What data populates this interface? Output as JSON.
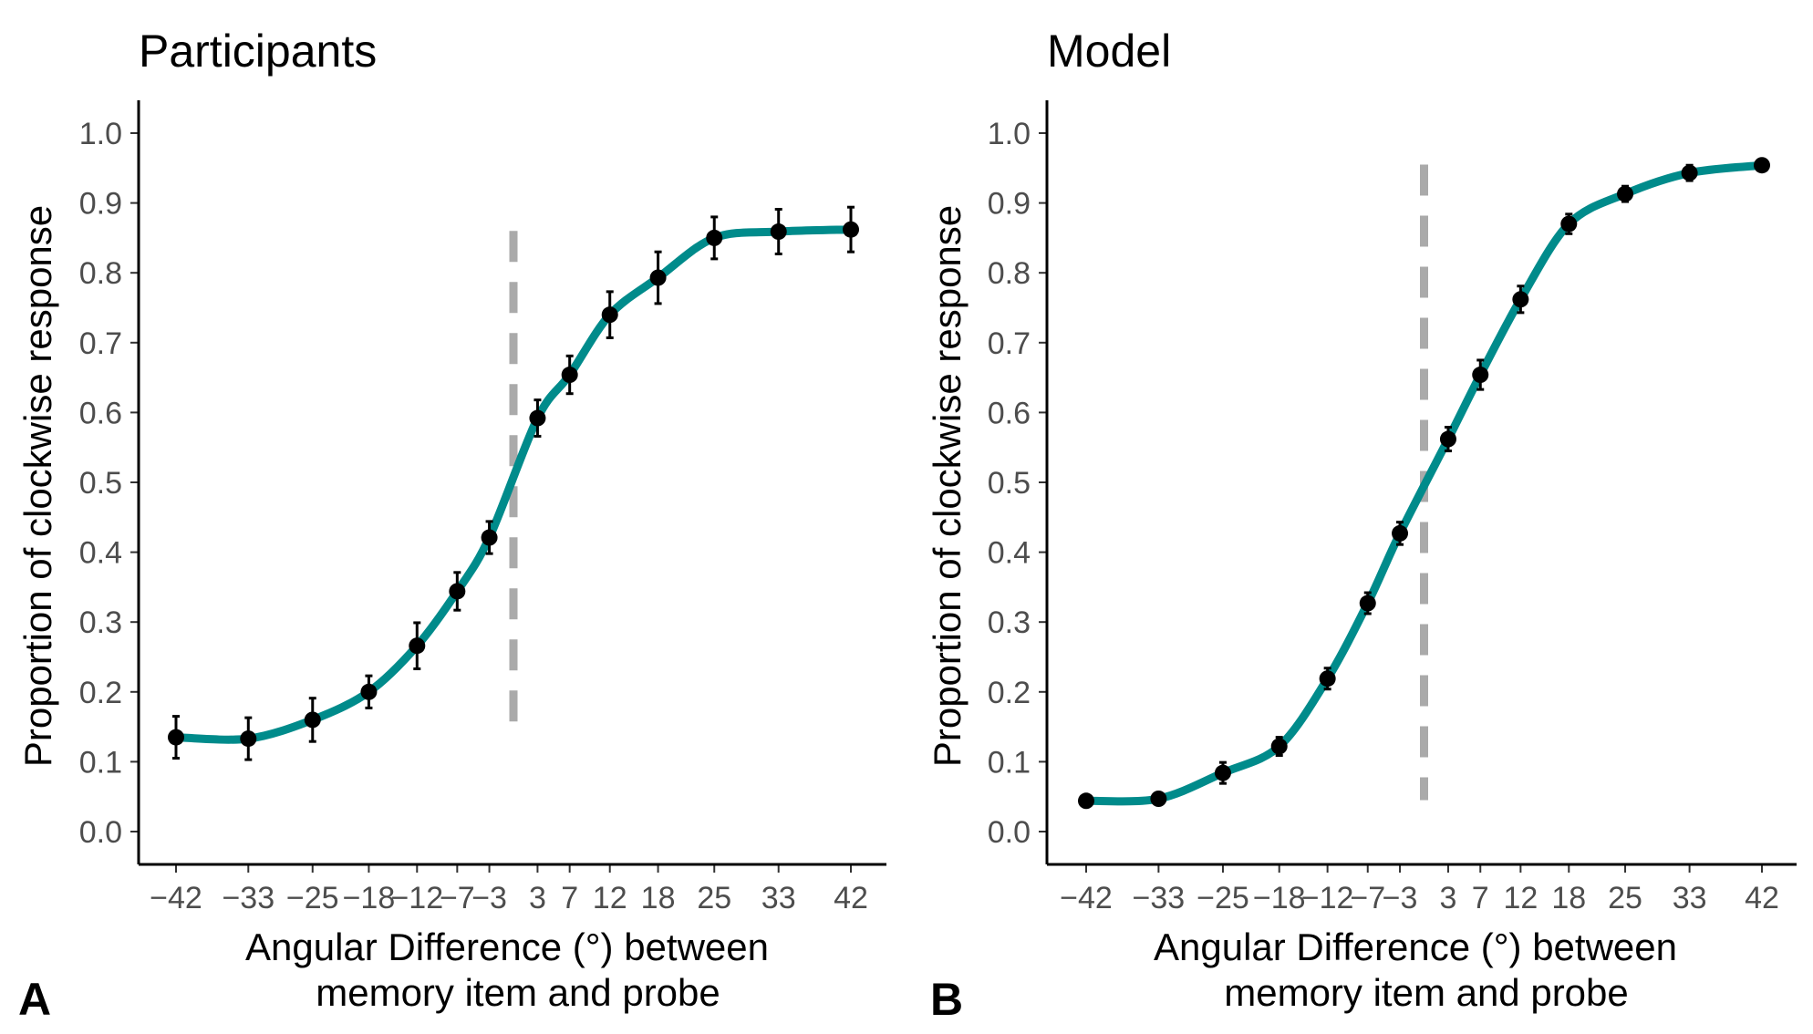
{
  "chart_data": [
    {
      "type": "line",
      "panel_letter": "A",
      "title": "Participants",
      "xlabel_lines": [
        "Angular Difference (°) between",
        "memory item and probe"
      ],
      "ylabel": "Proportion of clockwise response",
      "x": [
        -42,
        -33,
        -25,
        -18,
        -12,
        -7,
        -3,
        3,
        7,
        12,
        18,
        25,
        33,
        42
      ],
      "x_tick_labels": [
        "−42",
        "−33",
        "−25",
        "−18",
        "−12",
        "−7",
        "−3",
        "3",
        "7",
        "12",
        "18",
        "25",
        "33",
        "42"
      ],
      "y_ticks": [
        0.0,
        0.1,
        0.2,
        0.3,
        0.4,
        0.5,
        0.6,
        0.7,
        0.8,
        0.9,
        1.0
      ],
      "y_tick_labels": [
        "0.0",
        "0.1",
        "0.2",
        "0.3",
        "0.4",
        "0.5",
        "0.6",
        "0.7",
        "0.8",
        "0.9",
        "1.0"
      ],
      "ylim": [
        0.0,
        1.0
      ],
      "series": [
        {
          "line_color": "#008b8b",
          "point_color": "#000000",
          "means": [
            0.135,
            0.133,
            0.16,
            0.2,
            0.266,
            0.344,
            0.421,
            0.592,
            0.654,
            0.74,
            0.793,
            0.85,
            0.859,
            0.862
          ],
          "error": [
            0.03,
            0.03,
            0.031,
            0.023,
            0.033,
            0.027,
            0.023,
            0.026,
            0.027,
            0.033,
            0.037,
            0.03,
            0.032,
            0.032
          ]
        }
      ],
      "reference_line": {
        "x": 0,
        "y_range": [
          0.13,
          0.86
        ],
        "color": "#aaaaaa",
        "style": "dashed"
      },
      "grid": false
    },
    {
      "type": "line",
      "panel_letter": "B",
      "title": "Model",
      "xlabel_lines": [
        "Angular Difference (°) between",
        "memory item and probe"
      ],
      "ylabel": "Proportion of clockwise response",
      "x": [
        -42,
        -33,
        -25,
        -18,
        -12,
        -7,
        -3,
        3,
        7,
        12,
        18,
        25,
        33,
        42
      ],
      "x_tick_labels": [
        "−42",
        "−33",
        "−25",
        "−18",
        "−12",
        "−7",
        "−3",
        "3",
        "7",
        "12",
        "18",
        "25",
        "33",
        "42"
      ],
      "y_ticks": [
        0.0,
        0.1,
        0.2,
        0.3,
        0.4,
        0.5,
        0.6,
        0.7,
        0.8,
        0.9,
        1.0
      ],
      "y_tick_labels": [
        "0.0",
        "0.1",
        "0.2",
        "0.3",
        "0.4",
        "0.5",
        "0.6",
        "0.7",
        "0.8",
        "0.9",
        "1.0"
      ],
      "ylim": [
        0.0,
        1.0
      ],
      "series": [
        {
          "line_color": "#008b8b",
          "point_color": "#000000",
          "means": [
            0.044,
            0.047,
            0.084,
            0.122,
            0.219,
            0.327,
            0.427,
            0.562,
            0.654,
            0.762,
            0.87,
            0.913,
            0.943,
            0.954
          ],
          "error": [
            0.005,
            0.006,
            0.015,
            0.013,
            0.015,
            0.015,
            0.016,
            0.017,
            0.021,
            0.019,
            0.014,
            0.011,
            0.011,
            0.008
          ]
        }
      ],
      "reference_line": {
        "x": 0,
        "y_range": [
          0.045,
          0.955
        ],
        "color": "#aaaaaa",
        "style": "dashed"
      },
      "grid": false
    }
  ]
}
